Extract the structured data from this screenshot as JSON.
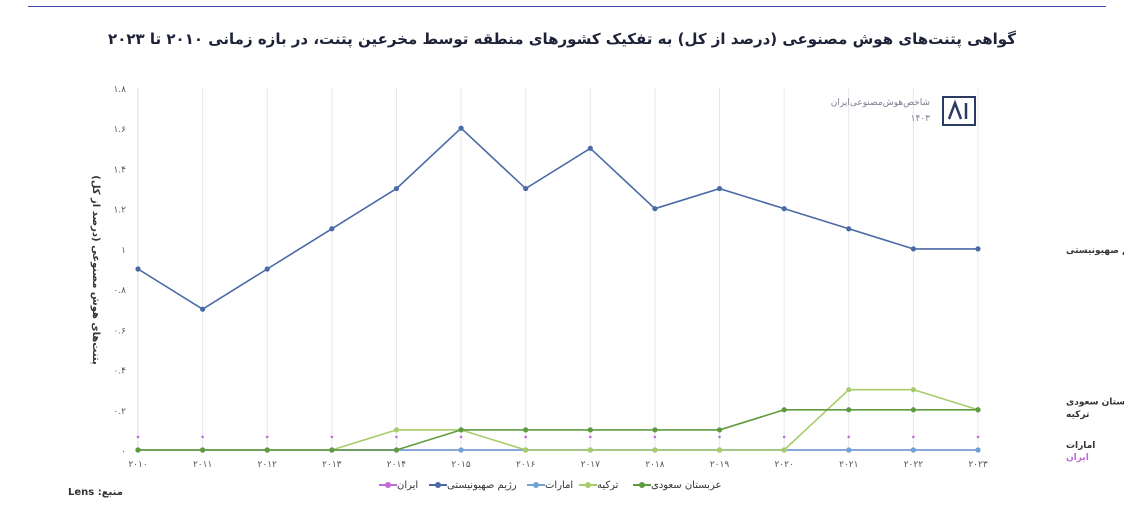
{
  "title": "گواهی پتنت‌های هوش مصنوعی (درصد از کل) به تفکیک کشورهای منطقه توسط مخرعین پتنت، در بازه زمانی ۲۰۱۰ تا ۲۰۲۳",
  "logo": {
    "text": "شاخص‌هوش‌مصنوعی‌ایران",
    "year": "۱۴۰۳",
    "mark": "AI"
  },
  "source_label": "منبع: Lens",
  "chart_data": {
    "type": "line",
    "title": "گواهی پتنت‌های هوش مصنوعی (درصد از کل) به تفکیک کشورهای منطقه توسط مخرعین پتنت، در بازه زمانی ۲۰۱۰ تا ۲۰۲۳",
    "ylabel": "پتنت‌های هوش مصنوعی (درصد از کل)",
    "xlabel": "",
    "ylim": [
      0,
      1.8
    ],
    "yticks": [
      0,
      0.2,
      0.4,
      0.6,
      0.8,
      1,
      1.2,
      1.4,
      1.6,
      1.8
    ],
    "ytick_labels": [
      "۰",
      "۰.۲",
      "۰.۴",
      "۰.۶",
      "۰.۸",
      "۱",
      "۱.۲",
      "۱.۴",
      "۱.۶",
      "۱.۸"
    ],
    "categories": [
      "۲۰۱۰",
      "۲۰۱۱",
      "۲۰۱۲",
      "۲۰۱۳",
      "۲۰۱۴",
      "۲۰۱۵",
      "۲۰۱۶",
      "۲۰۱۷",
      "۲۰۱۸",
      "۲۰۱۹",
      "۲۰۲۰",
      "۲۰۲۱",
      "۲۰۲۲",
      "۲۰۲۳"
    ],
    "grid": {
      "vertical": true,
      "horizontal": false
    },
    "legend_position": "bottom",
    "series": [
      {
        "name": "رژیم صهیونیستی",
        "color": "#4a6aa5",
        "values": [
          0.9,
          0.7,
          0.9,
          1.1,
          1.3,
          1.6,
          1.3,
          1.5,
          1.2,
          1.3,
          1.2,
          1.1,
          1.0,
          1.0
        ]
      },
      {
        "name": "ترکیه",
        "color": "#a6cd6a",
        "values": [
          0,
          0,
          0,
          0,
          0.1,
          0.1,
          0,
          0,
          0,
          0,
          0,
          0.3,
          0.3,
          0.2
        ]
      },
      {
        "name": "عربستان سعودی",
        "color": "#5f9a40",
        "values": [
          0,
          0,
          0,
          0,
          0,
          0.1,
          0.1,
          0.1,
          0.1,
          0.1,
          0.2,
          0.2,
          0.2,
          0.2
        ]
      },
      {
        "name": "امارات",
        "color": "#6fa3d6",
        "values": [
          0,
          0,
          0,
          0,
          0,
          0,
          0,
          0,
          0,
          0,
          0,
          0,
          0,
          0
        ]
      },
      {
        "name": "ایران",
        "color": "#c06bd8",
        "values": [
          0,
          0,
          0,
          0,
          0,
          0,
          0,
          0,
          0,
          0,
          0,
          0,
          0,
          0
        ]
      }
    ],
    "end_labels": [
      {
        "text": "رژیم صهیونیستی",
        "value": 1.0,
        "color": "#333333"
      },
      {
        "text": "عربستان سعودی",
        "value": 0.245,
        "color": "#333333"
      },
      {
        "text": "ترکیه",
        "value": 0.185,
        "color": "#333333"
      },
      {
        "text": "امارات",
        "value": 0.03,
        "color": "#333333"
      },
      {
        "text": "ایران",
        "value": -0.03,
        "color": "#c06bd8"
      }
    ],
    "legend": [
      {
        "name": "ایران",
        "color": "#c06bd8"
      },
      {
        "name": "رژیم صهیونیستی",
        "color": "#4a6aa5"
      },
      {
        "name": "امارات",
        "color": "#6fa3d6"
      },
      {
        "name": "ترکیه",
        "color": "#a6cd6a"
      },
      {
        "name": "عربستان سعودی",
        "color": "#5f9a40"
      }
    ]
  }
}
